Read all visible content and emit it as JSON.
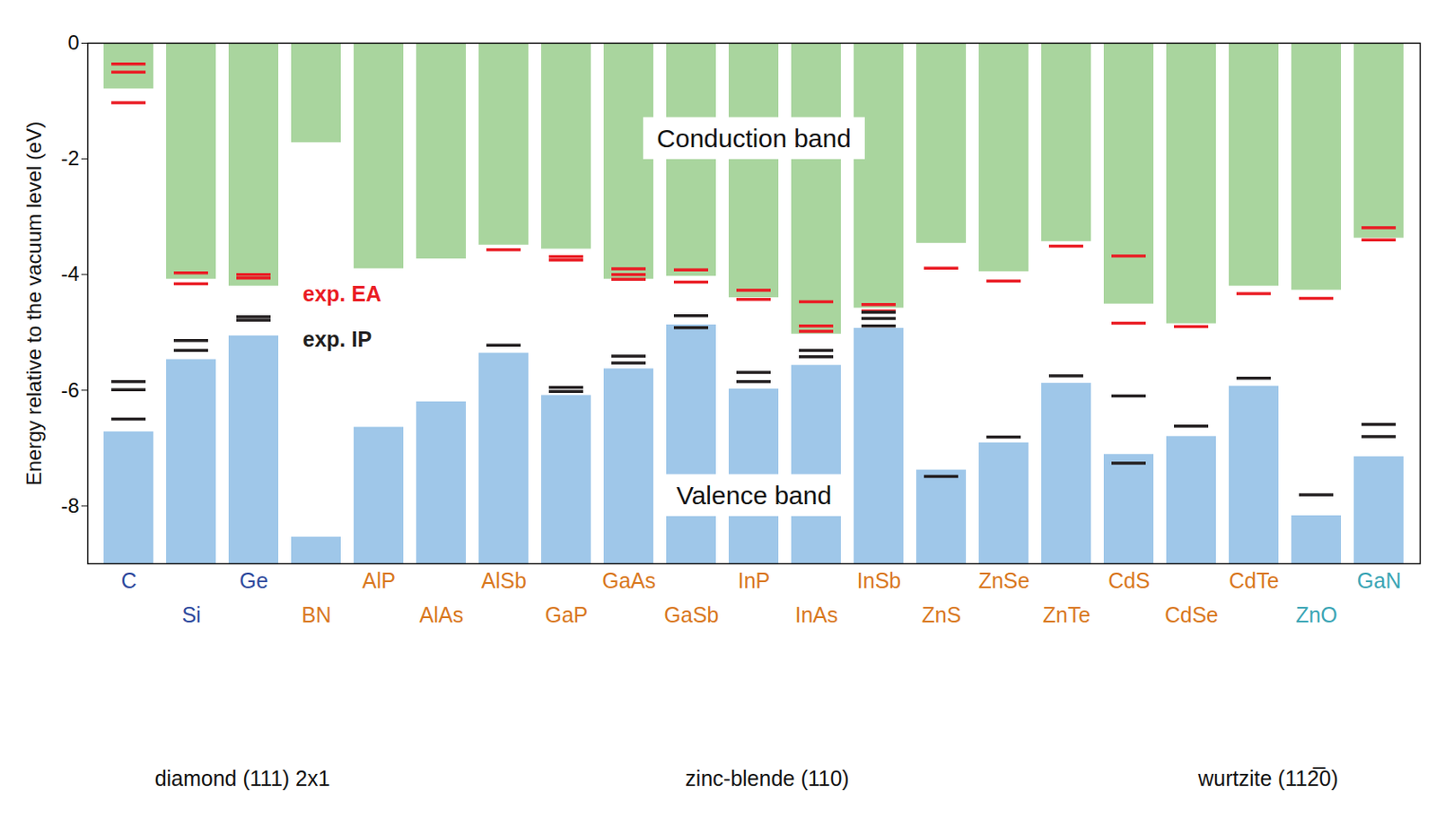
{
  "chart_data": {
    "type": "bar",
    "ylabel": "Energy relative to the vacuum level (eV)",
    "categories": [
      "C",
      "Si",
      "Ge",
      "BN",
      "AlP",
      "AlAs",
      "AlSb",
      "GaP",
      "GaAs",
      "GaSb",
      "InP",
      "InAs",
      "InSb",
      "ZnS",
      "ZnSe",
      "ZnTe",
      "CdS",
      "CdSe",
      "CdTe",
      "ZnO",
      "GaN"
    ],
    "colors": [
      "#2e4a9e",
      "#2e4a9e",
      "#2e4a9e",
      "#d9781e",
      "#d9781e",
      "#d9781e",
      "#d9781e",
      "#d9781e",
      "#d9781e",
      "#d9781e",
      "#d9781e",
      "#d9781e",
      "#d9781e",
      "#d9781e",
      "#d9781e",
      "#d9781e",
      "#d9781e",
      "#d9781e",
      "#d9781e",
      "#3aa5b5",
      "#3aa5b5"
    ],
    "ylim": [
      -9,
      0
    ],
    "yticks": [
      0,
      -2,
      -4,
      -6,
      -8
    ],
    "series": [
      {
        "name": "Conduction band",
        "color": "#a9d59e",
        "values": [
          -0.79,
          -4.08,
          -4.2,
          -1.72,
          -3.9,
          -3.73,
          -3.49,
          -3.56,
          -4.08,
          -4.03,
          -4.4,
          -5.03,
          -4.58,
          -3.46,
          -3.95,
          -3.43,
          -4.51,
          -4.85,
          -4.2,
          -4.27,
          -3.37
        ]
      },
      {
        "name": "Valence band",
        "color": "#9fc7e9",
        "values": [
          -6.72,
          -5.47,
          -5.06,
          -8.54,
          -6.64,
          -6.2,
          -5.36,
          -6.09,
          -5.63,
          -4.87,
          -5.98,
          -5.57,
          -4.93,
          -7.38,
          -6.91,
          -5.88,
          -7.11,
          -6.8,
          -5.93,
          -8.17,
          -7.15
        ]
      },
      {
        "name": "exp. EA",
        "color": "#ea1c24",
        "type": "tick",
        "values": [
          [
            -0.36,
            -0.5,
            -1.03
          ],
          [
            -3.97,
            -4.16
          ],
          [
            -4.0,
            -4.06
          ],
          [],
          [],
          [],
          [
            -3.57
          ],
          [
            -3.69,
            -3.75
          ],
          [
            -3.9,
            -4.0,
            -4.08
          ],
          [
            -3.92,
            -4.13
          ],
          [
            -4.27,
            -4.43
          ],
          [
            -4.47,
            -4.89,
            -4.98
          ],
          [
            -4.52,
            -4.63
          ],
          [
            -3.89
          ],
          [
            -4.11
          ],
          [
            -3.51
          ],
          [
            -3.68,
            -4.84
          ],
          [
            -4.9
          ],
          [
            -4.33
          ],
          [
            -4.41
          ],
          [
            -3.19,
            -3.4
          ]
        ]
      },
      {
        "name": "exp. IP",
        "color": "#231f20",
        "type": "tick",
        "values": [
          [
            -5.85,
            -5.99,
            -6.5
          ],
          [
            -5.14,
            -5.31
          ],
          [
            -4.73,
            -4.79
          ],
          [],
          [],
          [],
          [
            -5.22
          ],
          [
            -5.95,
            -6.02
          ],
          [
            -5.41,
            -5.53
          ],
          [
            -4.71,
            -4.92
          ],
          [
            -5.69,
            -5.85
          ],
          [
            -5.31,
            -5.42
          ],
          [
            -4.65,
            -4.76,
            -4.89
          ],
          [
            -7.49
          ],
          [
            -6.81
          ],
          [
            -5.75
          ],
          [
            -6.1,
            -7.26
          ],
          [
            -6.62
          ],
          [
            -5.79
          ],
          [
            -7.81
          ],
          [
            -6.59,
            -6.8
          ]
        ]
      }
    ],
    "structures": [
      "diamond (111) 2x1",
      "zinc-blende (110)",
      "wurtzite (112̅0)"
    ]
  }
}
